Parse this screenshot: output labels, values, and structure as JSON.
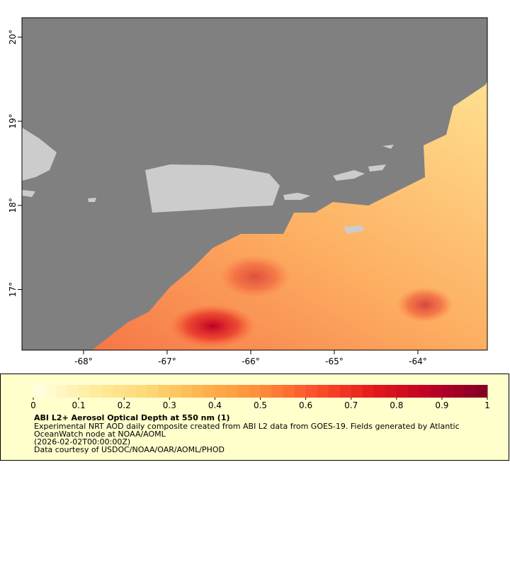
{
  "map": {
    "xlim": [
      -68.737,
      -63.169
    ],
    "ylim": [
      16.28,
      20.23
    ],
    "xticks": [
      {
        "value": -68,
        "label": "-68°"
      },
      {
        "value": -67,
        "label": "-67°"
      },
      {
        "value": -66,
        "label": "-66°"
      },
      {
        "value": -65,
        "label": "-65°"
      },
      {
        "value": -64,
        "label": "-64°"
      }
    ],
    "yticks": [
      {
        "value": 17,
        "label": "17°"
      },
      {
        "value": 18,
        "label": "18°"
      },
      {
        "value": 19,
        "label": "19°"
      },
      {
        "value": 20,
        "label": "20°"
      }
    ],
    "ocean_color": "#808080",
    "land_color": "#cccccc"
  },
  "legend": {
    "lim": [
      0,
      1
    ],
    "ticks": [
      0,
      0.1,
      0.2,
      0.3,
      0.4,
      0.5,
      0.6,
      0.7,
      0.8,
      0.9,
      1
    ],
    "colors": [
      "#ffffe6",
      "#ffeda0",
      "#fed976",
      "#feb24c",
      "#fd8d3c",
      "#fc4e2a",
      "#e31a1c",
      "#bd0026",
      "#800026"
    ],
    "title": "ABI L2+ Aerosol Optical Depth at 550 nm (1)",
    "lines": [
      "Experimental NRT AOD daily composite created from ABI L2 data from GOES-19. Fields generated by Atlantic",
      "OceanWatch node at NOAA/AOML",
      "(2026-02-02T00:00:00Z)",
      "Data courtesy of USDOC/NOAA/OAR/AOML/PHOD"
    ]
  }
}
